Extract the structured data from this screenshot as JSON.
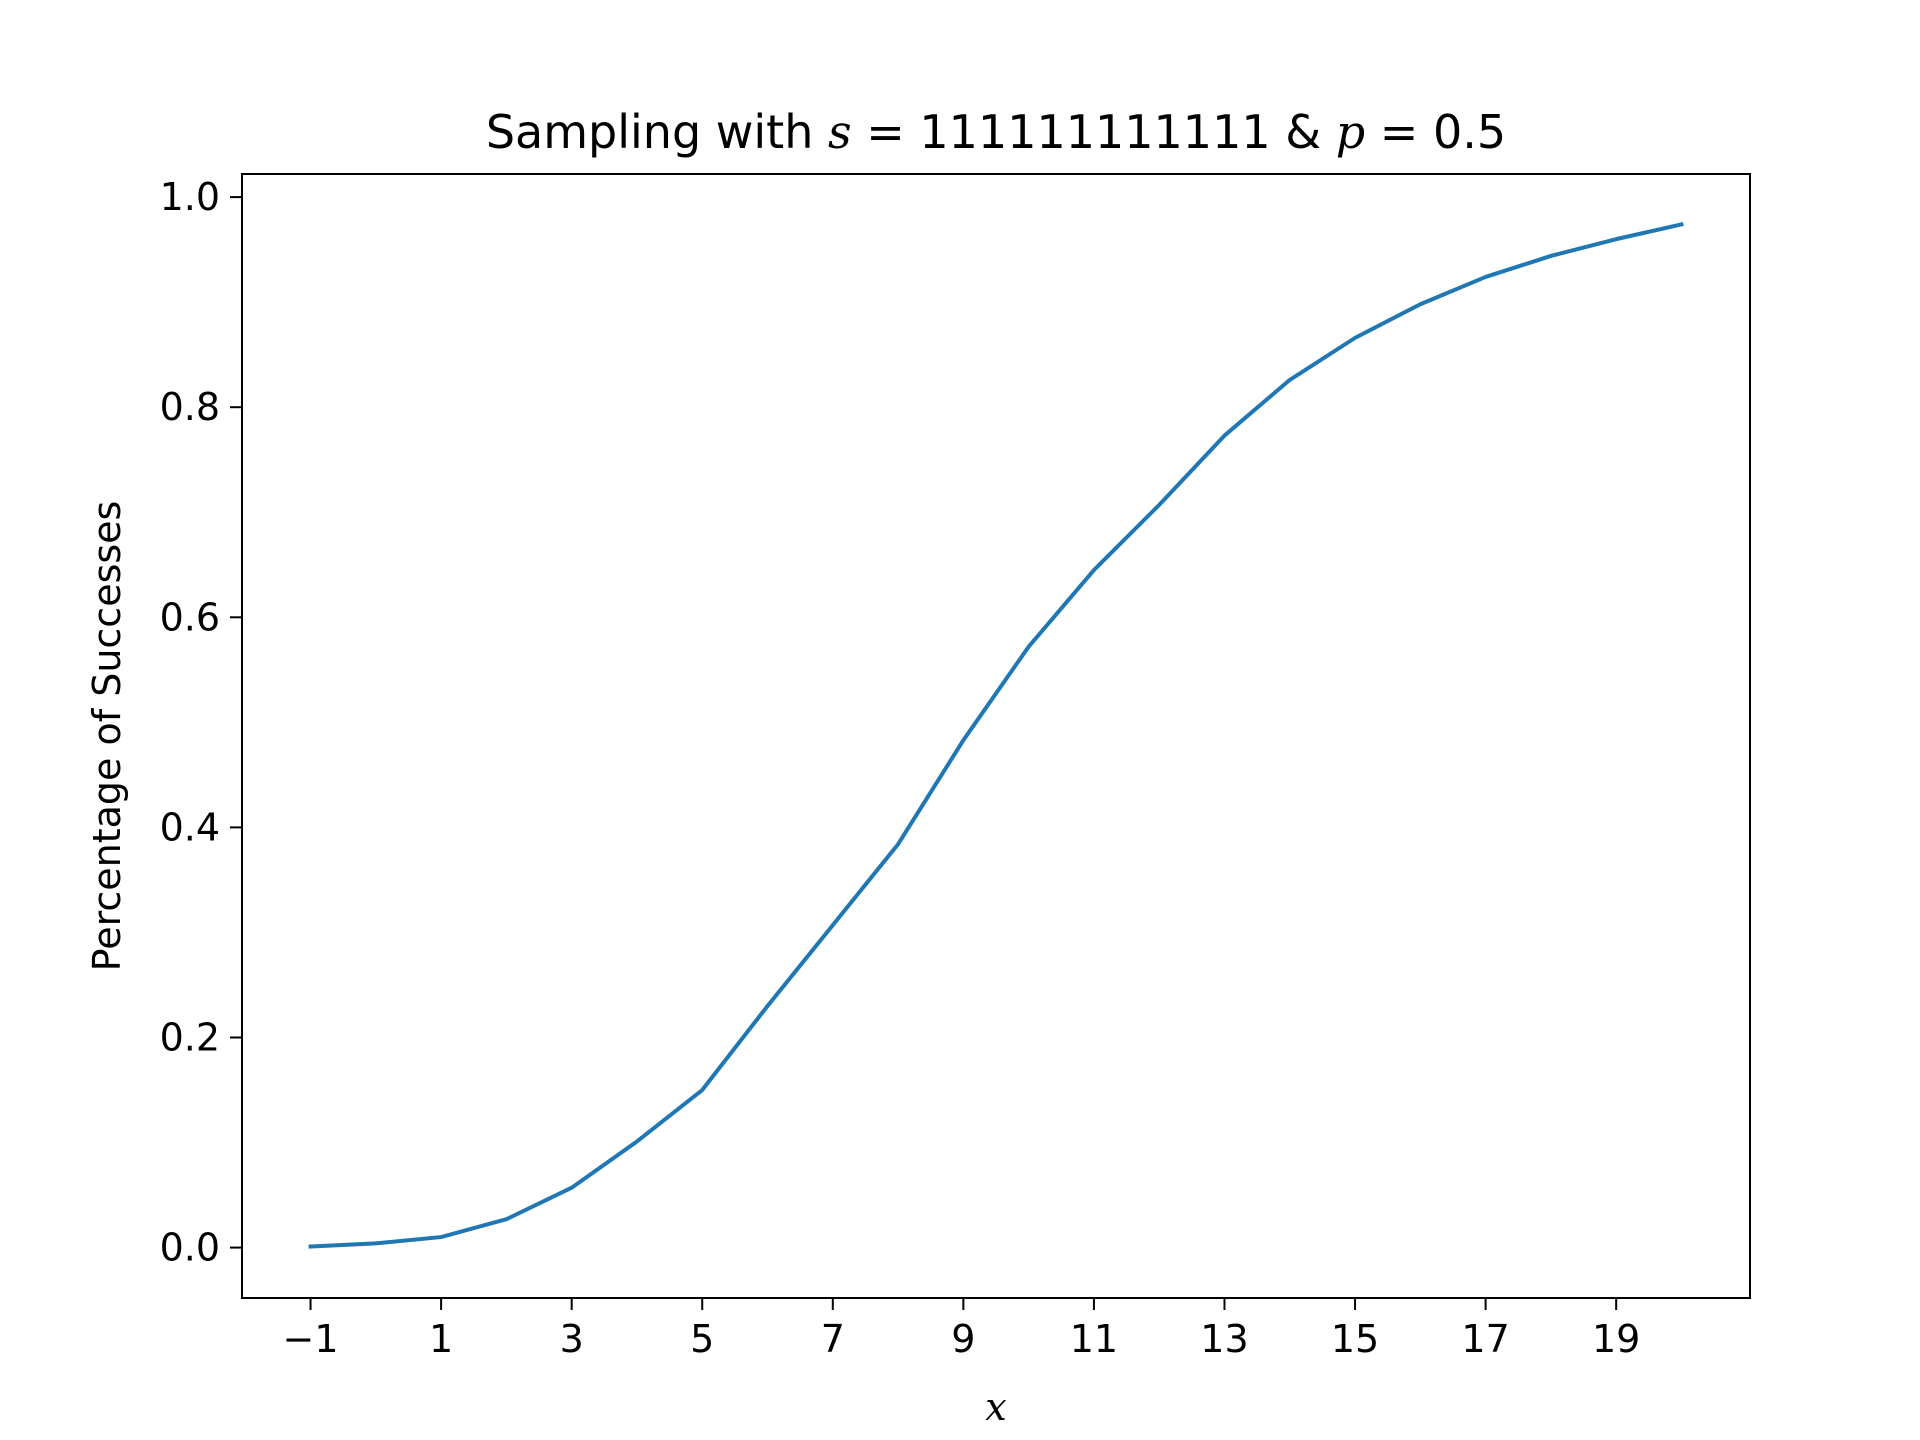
{
  "chart_data": {
    "type": "line",
    "title": {
      "prefix": "Sampling with ",
      "s_symbol": "s",
      "s_value": "111111111111",
      "connector": " & ",
      "p_symbol": "p",
      "p_value": "0.5",
      "equals": " = "
    },
    "xlabel": "x",
    "ylabel": "Percentage of Successes",
    "xlim": [
      -2.05,
      21.05
    ],
    "ylim": [
      -0.048,
      1.022
    ],
    "xticks": [
      {
        "value": -1,
        "label": "−1"
      },
      {
        "value": 1,
        "label": "1"
      },
      {
        "value": 3,
        "label": "3"
      },
      {
        "value": 5,
        "label": "5"
      },
      {
        "value": 7,
        "label": "7"
      },
      {
        "value": 9,
        "label": "9"
      },
      {
        "value": 11,
        "label": "11"
      },
      {
        "value": 13,
        "label": "13"
      },
      {
        "value": 15,
        "label": "15"
      },
      {
        "value": 17,
        "label": "17"
      },
      {
        "value": 19,
        "label": "19"
      }
    ],
    "yticks": [
      {
        "value": 0.0,
        "label": "0.0"
      },
      {
        "value": 0.2,
        "label": "0.2"
      },
      {
        "value": 0.4,
        "label": "0.4"
      },
      {
        "value": 0.6,
        "label": "0.6"
      },
      {
        "value": 0.8,
        "label": "0.8"
      },
      {
        "value": 1.0,
        "label": "1.0"
      }
    ],
    "grid": false,
    "series": [
      {
        "color": "#1f77b4",
        "x": [
          -1,
          0,
          1,
          2,
          3,
          4,
          5,
          6,
          7,
          8,
          9,
          10,
          11,
          12,
          13,
          14,
          15,
          16,
          17,
          18,
          19,
          20
        ],
        "y": [
          0.001,
          0.004,
          0.01,
          0.027,
          0.057,
          0.101,
          0.15,
          0.23,
          0.307,
          0.384,
          0.483,
          0.572,
          0.645,
          0.707,
          0.773,
          0.826,
          0.866,
          0.898,
          0.924,
          0.944,
          0.96,
          0.974
        ]
      }
    ]
  }
}
